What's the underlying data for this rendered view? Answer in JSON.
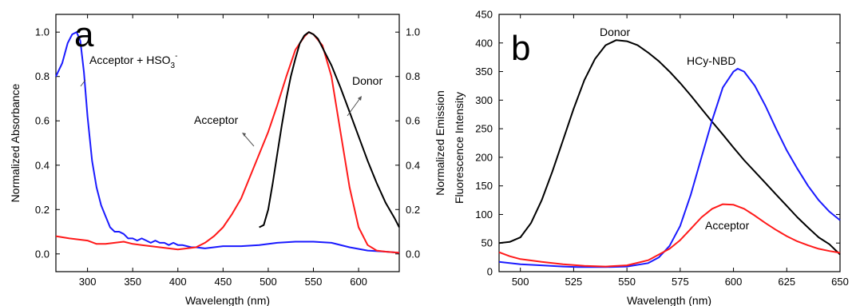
{
  "chart_data": [
    {
      "panel": "a",
      "type": "line",
      "xlabel": "Wavelength (nm)",
      "ylabel": "Normalized Absorbance",
      "ylabel_right": "Normalized Emission",
      "xlim": [
        265,
        645
      ],
      "ylim": [
        -0.08,
        1.08
      ],
      "xticks": [
        300,
        350,
        400,
        450,
        500,
        550,
        600
      ],
      "yticks": [
        0.0,
        0.2,
        0.4,
        0.6,
        0.8,
        1.0
      ],
      "yticks_right": [
        0.0,
        0.2,
        0.4,
        0.6,
        0.8,
        1.0
      ],
      "series": [
        {
          "name": "Acceptor + HSO3-",
          "color": "#1a1aff",
          "points": [
            [
              265,
              0.8
            ],
            [
              272,
              0.86
            ],
            [
              278,
              0.95
            ],
            [
              283,
              0.99
            ],
            [
              288,
              1.0
            ],
            [
              292,
              0.96
            ],
            [
              296,
              0.82
            ],
            [
              300,
              0.62
            ],
            [
              305,
              0.42
            ],
            [
              310,
              0.3
            ],
            [
              315,
              0.22
            ],
            [
              320,
              0.17
            ],
            [
              325,
              0.12
            ],
            [
              330,
              0.1
            ],
            [
              335,
              0.1
            ],
            [
              340,
              0.09
            ],
            [
              345,
              0.07
            ],
            [
              350,
              0.07
            ],
            [
              355,
              0.06
            ],
            [
              360,
              0.07
            ],
            [
              365,
              0.06
            ],
            [
              370,
              0.05
            ],
            [
              375,
              0.06
            ],
            [
              380,
              0.05
            ],
            [
              385,
              0.05
            ],
            [
              390,
              0.04
            ],
            [
              395,
              0.05
            ],
            [
              400,
              0.04
            ],
            [
              405,
              0.04
            ],
            [
              410,
              0.035
            ],
            [
              415,
              0.03
            ],
            [
              420,
              0.03
            ],
            [
              430,
              0.025
            ],
            [
              440,
              0.03
            ],
            [
              450,
              0.035
            ],
            [
              470,
              0.035
            ],
            [
              490,
              0.04
            ],
            [
              510,
              0.05
            ],
            [
              530,
              0.055
            ],
            [
              550,
              0.055
            ],
            [
              570,
              0.05
            ],
            [
              590,
              0.03
            ],
            [
              610,
              0.015
            ],
            [
              630,
              0.01
            ],
            [
              645,
              0.005
            ]
          ]
        },
        {
          "name": "Acceptor",
          "color": "#ff1a1a",
          "points": [
            [
              265,
              0.08
            ],
            [
              280,
              0.07
            ],
            [
              300,
              0.06
            ],
            [
              310,
              0.045
            ],
            [
              320,
              0.045
            ],
            [
              330,
              0.05
            ],
            [
              340,
              0.055
            ],
            [
              350,
              0.045
            ],
            [
              360,
              0.04
            ],
            [
              380,
              0.03
            ],
            [
              400,
              0.02
            ],
            [
              420,
              0.03
            ],
            [
              430,
              0.05
            ],
            [
              440,
              0.08
            ],
            [
              450,
              0.12
            ],
            [
              460,
              0.18
            ],
            [
              470,
              0.25
            ],
            [
              480,
              0.35
            ],
            [
              490,
              0.45
            ],
            [
              500,
              0.55
            ],
            [
              510,
              0.67
            ],
            [
              520,
              0.8
            ],
            [
              530,
              0.92
            ],
            [
              540,
              0.98
            ],
            [
              545,
              1.0
            ],
            [
              550,
              0.99
            ],
            [
              560,
              0.94
            ],
            [
              570,
              0.8
            ],
            [
              580,
              0.55
            ],
            [
              590,
              0.3
            ],
            [
              600,
              0.12
            ],
            [
              610,
              0.04
            ],
            [
              620,
              0.015
            ],
            [
              630,
              0.01
            ],
            [
              645,
              0.005
            ]
          ]
        },
        {
          "name": "Donor",
          "color": "#000000",
          "points": [
            [
              490,
              0.12
            ],
            [
              495,
              0.13
            ],
            [
              500,
              0.2
            ],
            [
              505,
              0.32
            ],
            [
              510,
              0.45
            ],
            [
              515,
              0.58
            ],
            [
              520,
              0.7
            ],
            [
              525,
              0.8
            ],
            [
              530,
              0.88
            ],
            [
              535,
              0.95
            ],
            [
              540,
              0.985
            ],
            [
              545,
              1.0
            ],
            [
              550,
              0.99
            ],
            [
              555,
              0.97
            ],
            [
              560,
              0.93
            ],
            [
              570,
              0.85
            ],
            [
              580,
              0.75
            ],
            [
              590,
              0.64
            ],
            [
              600,
              0.53
            ],
            [
              610,
              0.42
            ],
            [
              620,
              0.32
            ],
            [
              630,
              0.23
            ],
            [
              640,
              0.16
            ],
            [
              645,
              0.12
            ]
          ]
        }
      ],
      "annotations": [
        "Acceptor + HSO",
        "3",
        "-",
        "Acceptor",
        "Donor"
      ]
    },
    {
      "panel": "b",
      "type": "line",
      "xlabel": "Wavelength (nm)",
      "ylabel": "Fluorescence Intensity",
      "xlim": [
        490,
        650
      ],
      "ylim": [
        0,
        450
      ],
      "xticks": [
        500,
        525,
        550,
        575,
        600,
        625,
        650
      ],
      "yticks": [
        0,
        50,
        100,
        150,
        200,
        250,
        300,
        350,
        400,
        450
      ],
      "series": [
        {
          "name": "Donor",
          "color": "#000000",
          "points": [
            [
              490,
              50
            ],
            [
              495,
              52
            ],
            [
              500,
              60
            ],
            [
              505,
              85
            ],
            [
              510,
              125
            ],
            [
              515,
              175
            ],
            [
              520,
              230
            ],
            [
              525,
              285
            ],
            [
              530,
              335
            ],
            [
              535,
              372
            ],
            [
              540,
              396
            ],
            [
              545,
              405
            ],
            [
              550,
              403
            ],
            [
              555,
              396
            ],
            [
              560,
              383
            ],
            [
              565,
              368
            ],
            [
              570,
              350
            ],
            [
              575,
              330
            ],
            [
              580,
              308
            ],
            [
              585,
              285
            ],
            [
              590,
              262
            ],
            [
              595,
              240
            ],
            [
              600,
              217
            ],
            [
              605,
              195
            ],
            [
              610,
              175
            ],
            [
              615,
              155
            ],
            [
              620,
              135
            ],
            [
              625,
              115
            ],
            [
              630,
              95
            ],
            [
              635,
              77
            ],
            [
              640,
              60
            ],
            [
              645,
              48
            ],
            [
              650,
              30
            ]
          ]
        },
        {
          "name": "HCy-NBD",
          "color": "#1a1aff",
          "points": [
            [
              490,
              17
            ],
            [
              500,
              13
            ],
            [
              510,
              11
            ],
            [
              520,
              9
            ],
            [
              527,
              8
            ],
            [
              540,
              8
            ],
            [
              550,
              9
            ],
            [
              560,
              15
            ],
            [
              565,
              25
            ],
            [
              570,
              45
            ],
            [
              575,
              80
            ],
            [
              580,
              135
            ],
            [
              585,
              200
            ],
            [
              590,
              265
            ],
            [
              595,
              322
            ],
            [
              600,
              350
            ],
            [
              602,
              355
            ],
            [
              605,
              350
            ],
            [
              610,
              325
            ],
            [
              615,
              290
            ],
            [
              620,
              250
            ],
            [
              625,
              212
            ],
            [
              630,
              180
            ],
            [
              635,
              150
            ],
            [
              640,
              125
            ],
            [
              645,
              105
            ],
            [
              650,
              90
            ]
          ]
        },
        {
          "name": "Acceptor",
          "color": "#ff1a1a",
          "points": [
            [
              490,
              34
            ],
            [
              495,
              27
            ],
            [
              500,
              22
            ],
            [
              510,
              17
            ],
            [
              520,
              13
            ],
            [
              530,
              10
            ],
            [
              540,
              9
            ],
            [
              550,
              11
            ],
            [
              560,
              20
            ],
            [
              570,
              40
            ],
            [
              575,
              55
            ],
            [
              580,
              75
            ],
            [
              585,
              95
            ],
            [
              590,
              110
            ],
            [
              595,
              118
            ],
            [
              600,
              117
            ],
            [
              605,
              110
            ],
            [
              610,
              98
            ],
            [
              615,
              85
            ],
            [
              620,
              73
            ],
            [
              625,
              62
            ],
            [
              630,
              53
            ],
            [
              635,
              46
            ],
            [
              640,
              40
            ],
            [
              645,
              36
            ],
            [
              650,
              33
            ]
          ]
        }
      ],
      "annotations": [
        "Donor",
        "HCy-NBD",
        "Acceptor"
      ]
    }
  ],
  "panels": {
    "a": {
      "letter": "a"
    },
    "b": {
      "letter": "b"
    }
  }
}
